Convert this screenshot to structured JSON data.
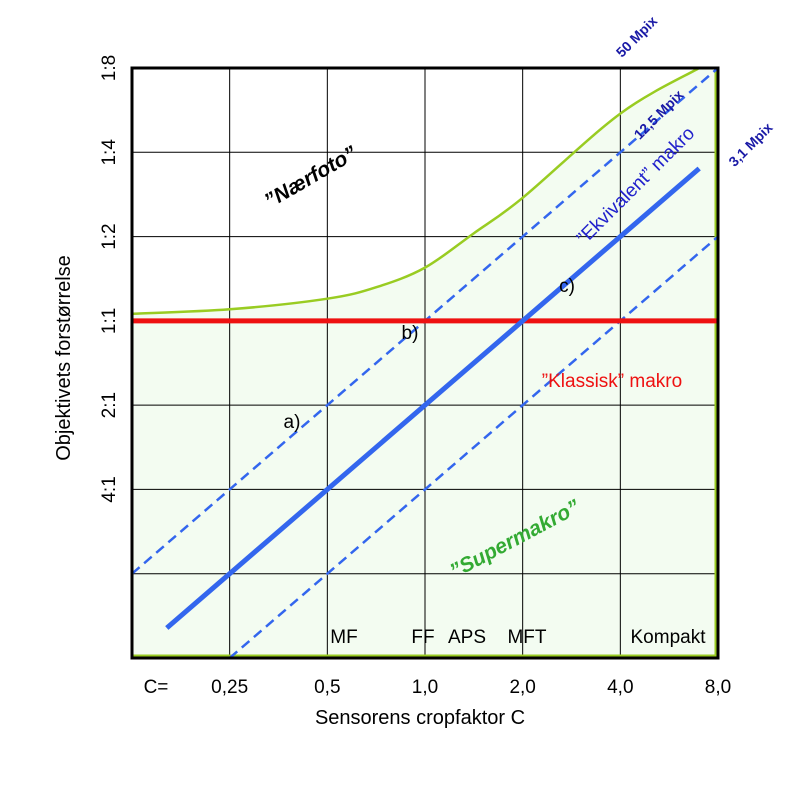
{
  "chart_data": {
    "type": "line",
    "xlabel": "Sensorens cropfaktor C",
    "ylabel": "Objektivets forstørrelse",
    "x_tick_prefix": "C=",
    "x_scale": "log2",
    "y_scale": "log2",
    "xlim": [
      0.125,
      8
    ],
    "ylim": [
      0.0625,
      8
    ],
    "x_ticks": [
      {
        "value": 0.25,
        "label": "0,25"
      },
      {
        "value": 0.5,
        "label": "0,5"
      },
      {
        "value": 1,
        "label": "1,0"
      },
      {
        "value": 2,
        "label": "2,0"
      },
      {
        "value": 4,
        "label": "4,0"
      },
      {
        "value": 8,
        "label": "8,0"
      }
    ],
    "x_grid": [
      0.125,
      0.25,
      0.5,
      1,
      2,
      4,
      8
    ],
    "y_ticks": [
      {
        "value": 0.25,
        "label": "4:1"
      },
      {
        "value": 0.5,
        "label": "2:1"
      },
      {
        "value": 1,
        "label": "1:1"
      },
      {
        "value": 2,
        "label": "1:2"
      },
      {
        "value": 4,
        "label": "1:4"
      },
      {
        "value": 8,
        "label": "1:8"
      }
    ],
    "y_grid": [
      0.0625,
      0.125,
      0.25,
      0.5,
      1,
      2,
      4,
      8
    ],
    "grid": true,
    "series": [
      {
        "name": "\"Ekvivalent\" makro",
        "style": "solid",
        "color": "#3366ee",
        "x": [
          0.16,
          7
        ],
        "y": [
          0.08,
          3.5
        ]
      },
      {
        "name": "50 Mpix",
        "style": "dashed",
        "color": "#3366ee",
        "x": [
          0.125,
          8
        ],
        "y": [
          0.125,
          8
        ]
      },
      {
        "name": "3,1 Mpix",
        "style": "dashed",
        "color": "#3366ee",
        "x": [
          0.25,
          8
        ],
        "y": [
          0.0625,
          2
        ]
      },
      {
        "name": "\"Klassisk\" makro",
        "style": "solid",
        "color": "#ee1111",
        "x": [
          0.125,
          8
        ],
        "y": [
          1,
          1
        ]
      },
      {
        "name": "Nærfoto boundary",
        "style": "solid",
        "color": "#99cc22",
        "x": [
          0.125,
          0.25,
          0.5,
          0.71,
          1.0,
          1.41,
          2.0,
          4.0,
          7.0
        ],
        "y": [
          1.06,
          1.1,
          1.2,
          1.32,
          1.55,
          2.05,
          2.75,
          5.5,
          8.0
        ]
      }
    ],
    "annotations": [
      {
        "id": "naerfoto",
        "text": "”Nærfoto”",
        "color": "#000000"
      },
      {
        "id": "supermakro",
        "text": "”Supermakro”",
        "color": "#33aa33"
      },
      {
        "id": "klassisk",
        "text": "”Klassisk” makro",
        "color": "#ee1111"
      },
      {
        "id": "ekvivalent",
        "text": "”Ekvivalent” makro",
        "color": "#2222cc"
      },
      {
        "id": "mpix50",
        "text": "50 Mpix",
        "color": "#1a1aa6"
      },
      {
        "id": "mpix125",
        "text": "12,5 Mpix",
        "color": "#1a1aa6"
      },
      {
        "id": "mpix31",
        "text": "3,1 Mpix",
        "color": "#1a1aa6"
      },
      {
        "id": "a",
        "text": "a)",
        "color": "#000000"
      },
      {
        "id": "b",
        "text": "b)",
        "color": "#000000"
      },
      {
        "id": "c",
        "text": "c)",
        "color": "#000000"
      },
      {
        "id": "mf",
        "text": "MF",
        "color": "#000000"
      },
      {
        "id": "ff",
        "text": "FF",
        "color": "#000000"
      },
      {
        "id": "aps",
        "text": "APS",
        "color": "#000000"
      },
      {
        "id": "mft",
        "text": "MFT",
        "color": "#000000"
      },
      {
        "id": "kompakt",
        "text": "Kompakt",
        "color": "#000000"
      }
    ],
    "fill_color": "#f3fcf1"
  }
}
